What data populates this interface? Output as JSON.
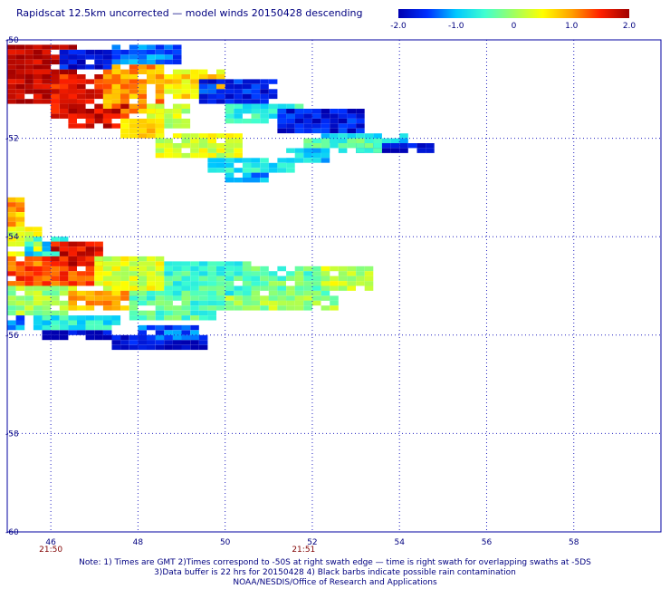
{
  "chart_data": {
    "type": "heatmap",
    "title": "Rapidscat 12.5km uncorrected — model winds 20150428 descending",
    "xlim": [
      45,
      60
    ],
    "ylim": [
      -60,
      -50
    ],
    "x_ticks": [
      "46",
      "48",
      "50",
      "52",
      "54",
      "56",
      "58"
    ],
    "y_ticks": [
      "-50",
      "-52",
      "-54",
      "-56",
      "-58",
      "-60"
    ],
    "time_labels": [
      {
        "x": 46,
        "label": "21:50"
      },
      {
        "x": 51.8,
        "label": "21:51"
      }
    ],
    "colorbar": {
      "range": [
        -2.0,
        2.0
      ],
      "tick_labels": [
        "-2.0",
        "-1.0",
        "0",
        "1.0",
        "2.0"
      ],
      "colors": [
        "#0000b0",
        "#0030ff",
        "#00c8ff",
        "#40ffd0",
        "#a0ff60",
        "#ffff00",
        "#ffa000",
        "#ff2000",
        "#a00000"
      ]
    },
    "swaths": [
      {
        "name": "upper",
        "cells": [
          {
            "x0": 45.0,
            "x1": 46.6,
            "y0": -50.1,
            "y1": -51.3,
            "value": 1.9
          },
          {
            "x0": 46.0,
            "x1": 47.8,
            "y0": -50.7,
            "y1": -51.6,
            "value": 1.6
          },
          {
            "x0": 47.2,
            "x1": 48.6,
            "y0": -50.4,
            "y1": -51.5,
            "value": 1.0
          },
          {
            "x0": 46.4,
            "x1": 47.6,
            "y0": -51.4,
            "y1": -51.8,
            "value": 1.8
          },
          {
            "x0": 46.2,
            "x1": 47.4,
            "y0": -50.2,
            "y1": -50.6,
            "value": -1.7
          },
          {
            "x0": 47.4,
            "x1": 49.0,
            "y0": -50.1,
            "y1": -50.5,
            "value": -1.3
          },
          {
            "x0": 48.6,
            "x1": 50.0,
            "y0": -50.6,
            "y1": -51.2,
            "value": 0.6
          },
          {
            "x0": 48.2,
            "x1": 49.2,
            "y0": -51.3,
            "y1": -51.8,
            "value": 0.2
          },
          {
            "x0": 47.6,
            "x1": 48.6,
            "y0": -51.6,
            "y1": -52.0,
            "value": 0.8
          },
          {
            "x0": 49.4,
            "x1": 51.2,
            "y0": -50.8,
            "y1": -51.3,
            "value": -1.6
          },
          {
            "x0": 50.0,
            "x1": 51.8,
            "y0": -51.3,
            "y1": -51.7,
            "value": -0.6
          },
          {
            "x0": 51.2,
            "x1": 53.2,
            "y0": -51.4,
            "y1": -51.9,
            "value": -1.7
          },
          {
            "x0": 52.2,
            "x1": 54.2,
            "y0": -51.9,
            "y1": -52.1,
            "value": -1.0
          },
          {
            "x0": 53.0,
            "x1": 54.7,
            "y0": -52.1,
            "y1": -52.3,
            "value": -1.8
          },
          {
            "x0": 51.8,
            "x1": 53.6,
            "y0": -52.0,
            "y1": -52.3,
            "value": -0.4
          },
          {
            "x0": 48.4,
            "x1": 50.4,
            "y0": -51.9,
            "y1": -52.4,
            "value": 0.3
          },
          {
            "x0": 49.6,
            "x1": 51.6,
            "y0": -52.4,
            "y1": -52.7,
            "value": -0.7
          },
          {
            "x0": 50.0,
            "x1": 51.0,
            "y0": -52.7,
            "y1": -52.9,
            "value": -1.1
          },
          {
            "x0": 51.4,
            "x1": 52.4,
            "y0": -52.2,
            "y1": -52.5,
            "value": -0.9
          }
        ]
      },
      {
        "name": "lower",
        "cells": [
          {
            "x0": 45.0,
            "x1": 45.4,
            "y0": -53.2,
            "y1": -53.8,
            "value": 0.9
          },
          {
            "x0": 45.0,
            "x1": 45.8,
            "y0": -53.8,
            "y1": -54.4,
            "value": 0.3
          },
          {
            "x0": 45.4,
            "x1": 46.4,
            "y0": -54.0,
            "y1": -54.4,
            "value": -0.8
          },
          {
            "x0": 45.0,
            "x1": 47.0,
            "y0": -54.4,
            "y1": -55.0,
            "value": 1.3
          },
          {
            "x0": 46.0,
            "x1": 47.2,
            "y0": -54.1,
            "y1": -54.6,
            "value": 1.7
          },
          {
            "x0": 47.0,
            "x1": 48.6,
            "y0": -54.4,
            "y1": -55.1,
            "value": 0.3
          },
          {
            "x0": 48.6,
            "x1": 50.6,
            "y0": -54.5,
            "y1": -55.2,
            "value": -0.5
          },
          {
            "x0": 50.4,
            "x1": 52.4,
            "y0": -54.6,
            "y1": -55.3,
            "value": -0.3
          },
          {
            "x0": 52.2,
            "x1": 53.4,
            "y0": -54.6,
            "y1": -55.1,
            "value": 0.2
          },
          {
            "x0": 45.0,
            "x1": 46.6,
            "y0": -55.0,
            "y1": -55.6,
            "value": 0.0
          },
          {
            "x0": 46.4,
            "x1": 48.0,
            "y0": -55.1,
            "y1": -55.5,
            "value": 0.9
          },
          {
            "x0": 47.8,
            "x1": 50.0,
            "y0": -55.1,
            "y1": -55.7,
            "value": -0.4
          },
          {
            "x0": 50.0,
            "x1": 52.6,
            "y0": -55.2,
            "y1": -55.5,
            "value": 0.0
          },
          {
            "x0": 45.0,
            "x1": 46.0,
            "y0": -55.6,
            "y1": -55.9,
            "value": -1.2
          },
          {
            "x0": 45.8,
            "x1": 47.6,
            "y0": -55.6,
            "y1": -55.9,
            "value": -0.7
          },
          {
            "x0": 45.8,
            "x1": 47.4,
            "y0": -55.9,
            "y1": -56.1,
            "value": -1.9
          },
          {
            "x0": 47.4,
            "x1": 49.6,
            "y0": -56.0,
            "y1": -56.3,
            "value": -1.8
          },
          {
            "x0": 48.0,
            "x1": 49.4,
            "y0": -55.8,
            "y1": -56.1,
            "value": -1.4
          }
        ]
      }
    ]
  },
  "footer": {
    "note_line1": "Note: 1) Times are GMT 2)Times correspond to -50S at right swath edge — time is right swath for overlapping swaths at -5DS",
    "note_line2": "3)Data buffer is 22 hrs for 20150428 4) Black barbs indicate possible rain contamination",
    "note_line3": "NOAA/NESDIS/Office of Research and Applications"
  }
}
